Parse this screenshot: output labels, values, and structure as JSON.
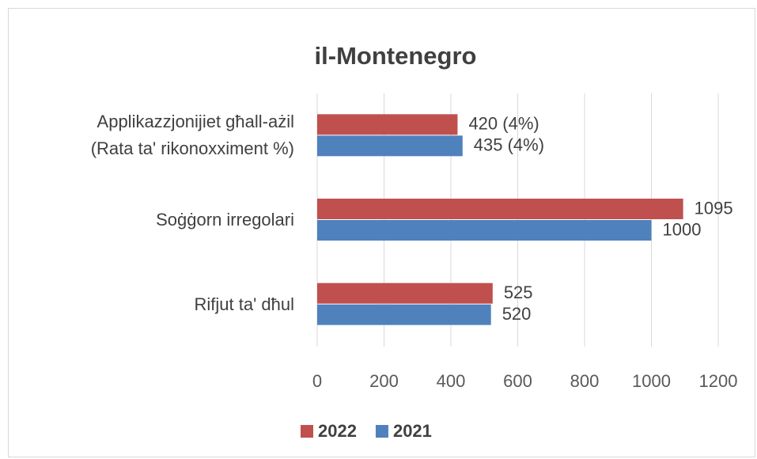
{
  "chart_data": {
    "type": "bar",
    "orientation": "horizontal",
    "title": "il-Montenegro",
    "categories": [
      "Applikazzjonijiet għall-ażil\n(Rata ta' rikonoxximent %)",
      "Soġġorn irregolari",
      "Rifjut ta' dħul"
    ],
    "series": [
      {
        "name": "2022",
        "color": "#c0504d",
        "values": [
          420,
          1095,
          525
        ],
        "value_labels": [
          "420 (4%)",
          "1095",
          "525"
        ]
      },
      {
        "name": "2021",
        "color": "#4f81bd",
        "values": [
          435,
          1000,
          520
        ],
        "value_labels": [
          "435 (4%)",
          "1000",
          "520"
        ]
      }
    ],
    "xlim": [
      0,
      1200
    ],
    "xticks": [
      0,
      200,
      400,
      600,
      800,
      1000,
      1200
    ],
    "grid": true,
    "legend": "bottom"
  }
}
